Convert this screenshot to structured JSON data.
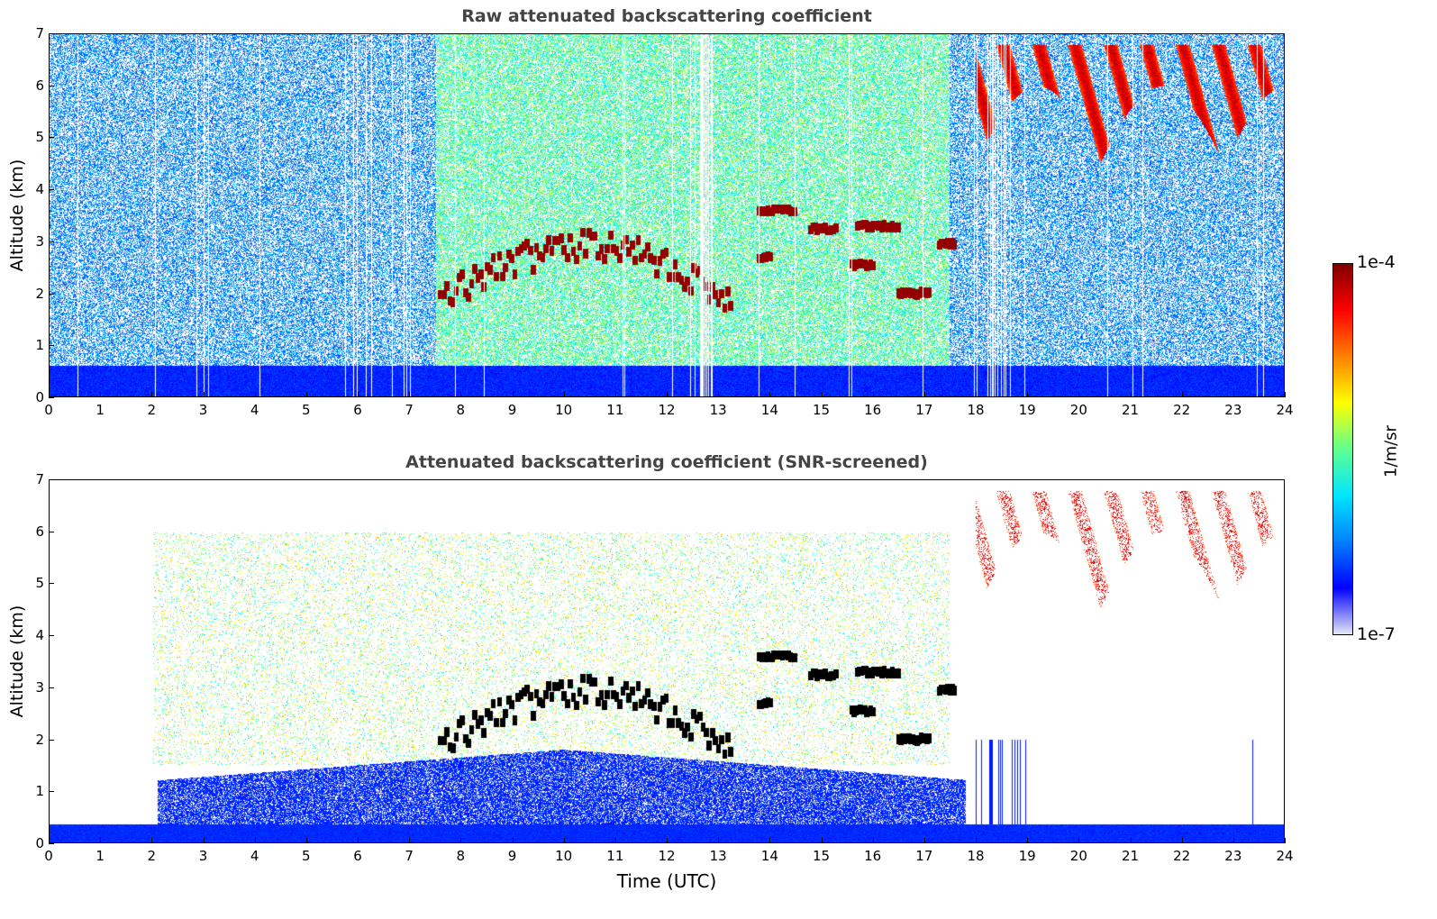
{
  "chart_data": [
    {
      "type": "heatmap",
      "title": "Raw attenuated backscattering coefficient",
      "xlabel": "",
      "ylabel": "Altitude (km)",
      "xlim": [
        0,
        24
      ],
      "ylim": [
        0,
        7
      ],
      "x_ticks": [
        "0",
        "1",
        "2",
        "3",
        "4",
        "5",
        "6",
        "7",
        "8",
        "9",
        "10",
        "11",
        "12",
        "13",
        "14",
        "15",
        "16",
        "17",
        "18",
        "19",
        "20",
        "21",
        "22",
        "23",
        "24"
      ],
      "y_ticks": [
        "0",
        "1",
        "2",
        "3",
        "4",
        "5",
        "6",
        "7"
      ],
      "screened": false,
      "features": [
        {
          "kind": "boundary-layer",
          "t_start": 0,
          "t_end": 24,
          "alt_top": 0.8
        },
        {
          "kind": "aerosol-haze",
          "t_start": 7.5,
          "t_end": 17.5,
          "alt_bottom": 0.5,
          "alt_top": 7
        },
        {
          "kind": "cloud-layer",
          "t_start": 7.6,
          "t_end": 13.3,
          "alt_bottom": 1.6,
          "alt_top": 3.2
        },
        {
          "kind": "cloud-layer",
          "t_start": 13.8,
          "t_end": 17.6,
          "alt_bottom": 1.9,
          "alt_top": 3.7
        },
        {
          "kind": "cirrus",
          "t_start": 18.0,
          "t_end": 24,
          "alt_bottom": 4.5,
          "alt_top": 6.9
        }
      ]
    },
    {
      "type": "heatmap",
      "title": "Attenuated backscattering coefficient (SNR-screened)",
      "xlabel": "Time (UTC)",
      "ylabel": "Altitude (km)",
      "xlim": [
        0,
        24
      ],
      "ylim": [
        0,
        7
      ],
      "x_ticks": [
        "0",
        "1",
        "2",
        "3",
        "4",
        "5",
        "6",
        "7",
        "8",
        "9",
        "10",
        "11",
        "12",
        "13",
        "14",
        "15",
        "16",
        "17",
        "18",
        "19",
        "20",
        "21",
        "22",
        "23",
        "24"
      ],
      "y_ticks": [
        "0",
        "1",
        "2",
        "3",
        "4",
        "5",
        "6",
        "7"
      ],
      "screened": true,
      "features": [
        {
          "kind": "boundary-layer",
          "t_start": 0,
          "t_end": 24,
          "alt_top": 0.35
        },
        {
          "kind": "boundary-layer",
          "t_start": 2.1,
          "t_end": 17.8,
          "alt_top": 1.8
        },
        {
          "kind": "aerosol-haze",
          "t_start": 2,
          "t_end": 17.5,
          "alt_bottom": 1.5,
          "alt_top": 6
        },
        {
          "kind": "cloud-layer",
          "t_start": 7.6,
          "t_end": 13.3,
          "alt_bottom": 1.6,
          "alt_top": 3.2
        },
        {
          "kind": "cloud-layer",
          "t_start": 13.8,
          "t_end": 17.6,
          "alt_bottom": 1.9,
          "alt_top": 3.7
        },
        {
          "kind": "cirrus",
          "t_start": 18.0,
          "t_end": 24,
          "alt_bottom": 4.5,
          "alt_top": 6.9
        }
      ]
    }
  ],
  "colorbar": {
    "max_label": "1e-4",
    "min_label": "1e-7",
    "unit": "1/m/sr",
    "colors": [
      "#e6e6f5",
      "#0000ff",
      "#0080ff",
      "#00e6ff",
      "#60ff90",
      "#ffff00",
      "#ff8000",
      "#ff0000",
      "#800000"
    ]
  }
}
